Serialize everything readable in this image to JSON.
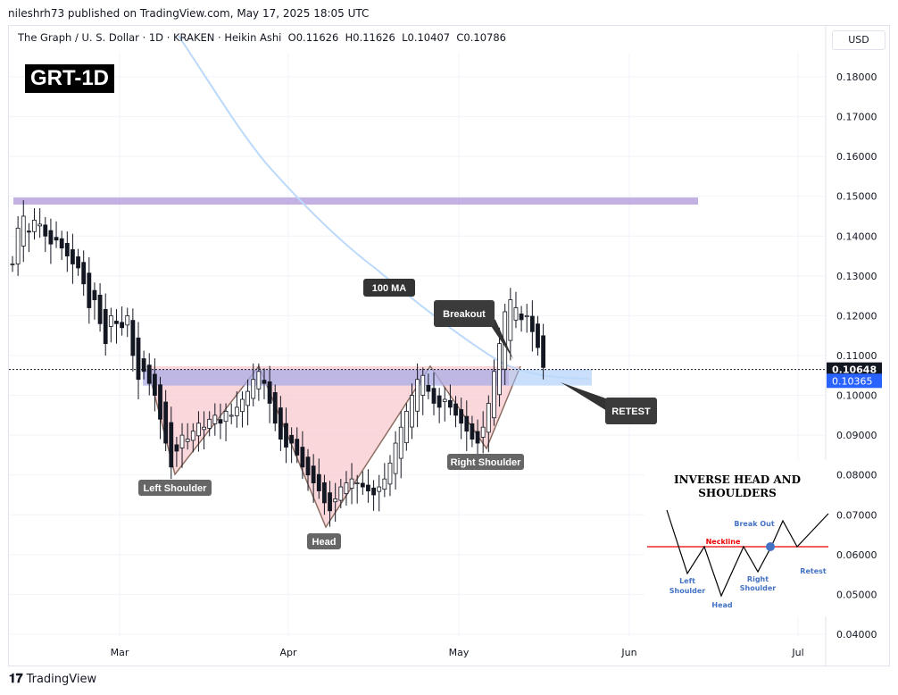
{
  "publisher": "nileshrh73 published on TradingView.com, May 17, 2025 18:05 UTC",
  "legend": "The Graph / U. S. Dollar · 1D · KRAKEN · Heikin Ashi  O0.11626  H0.11626  L0.10407  C0.10786",
  "currency": "USD",
  "ticker": "GRT-1D",
  "footer": "TradingView",
  "colors": {
    "up": "#131722",
    "down": "#131722",
    "ma": "#bbd9fb",
    "resistance": "#b39ddb",
    "neckline": "#9fc5f8",
    "pattern": "#f8c6cb"
  },
  "chart_data": {
    "type": "candlestick",
    "title": "The Graph / U. S. Dollar · 1D · KRAKEN · Heikin Ashi",
    "ylim": [
      0.035,
      0.19
    ],
    "y_ticks": [
      "0.18000",
      "0.17000",
      "0.16000",
      "0.15000",
      "0.14000",
      "0.13000",
      "0.12000",
      "0.11000",
      "0.10000",
      "0.09000",
      "0.08000",
      "0.07000",
      "0.06000",
      "0.05000",
      "0.04000"
    ],
    "x_ticks": [
      "Mar",
      "Apr",
      "May",
      "Jun",
      "Jul"
    ],
    "start_date": "2025-02-09",
    "closes": [
      0.133,
      0.142,
      0.145,
      0.141,
      0.144,
      0.143,
      0.14,
      0.138,
      0.139,
      0.137,
      0.135,
      0.133,
      0.132,
      0.128,
      0.122,
      0.124,
      0.118,
      0.113,
      0.12,
      0.118,
      0.117,
      0.12,
      0.11,
      0.104,
      0.106,
      0.103,
      0.1,
      0.094,
      0.088,
      0.082,
      0.086,
      0.09,
      0.089,
      0.091,
      0.093,
      0.092,
      0.094,
      0.095,
      0.093,
      0.096,
      0.095,
      0.097,
      0.099,
      0.101,
      0.104,
      0.106,
      0.103,
      0.098,
      0.093,
      0.089,
      0.087,
      0.088,
      0.085,
      0.082,
      0.08,
      0.078,
      0.076,
      0.073,
      0.071,
      0.074,
      0.077,
      0.078,
      0.079,
      0.078,
      0.077,
      0.076,
      0.075,
      0.077,
      0.079,
      0.083,
      0.088,
      0.092,
      0.096,
      0.1,
      0.104,
      0.105,
      0.101,
      0.098,
      0.097,
      0.099,
      0.097,
      0.095,
      0.093,
      0.091,
      0.089,
      0.088,
      0.092,
      0.098,
      0.106,
      0.113,
      0.121,
      0.124,
      0.122,
      0.119,
      0.12,
      0.116,
      0.112,
      0.107
    ],
    "current_price": "0.10648",
    "ma_price": "0.10365",
    "annotations": {
      "ma": "100 MA",
      "breakout": "Breakout",
      "retest": "RETEST",
      "left_shoulder": "Left Shoulder",
      "head": "Head",
      "right_shoulder": "Right Shoulder"
    },
    "inset": {
      "title1": "INVERSE HEAD AND",
      "title2": "SHOULDERS",
      "neckline": "Neckline",
      "breakout": "Break Out",
      "left1": "Left",
      "left2": "Shoulder",
      "head": "Head",
      "right1": "Right",
      "right2": "Shoulder",
      "retest": "Retest"
    }
  }
}
